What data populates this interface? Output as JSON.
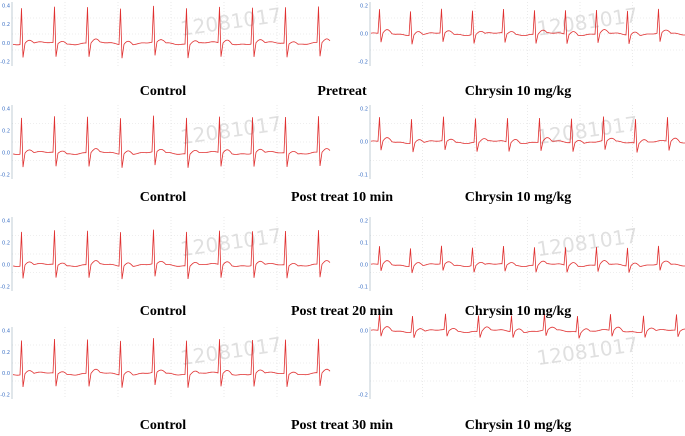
{
  "panels": [
    {
      "side": "left",
      "y_ticks": [
        "0.4",
        "0.2",
        "0.0",
        "-0.2"
      ],
      "watermark": "12081017"
    },
    {
      "side": "right",
      "y_ticks": [
        "0.2",
        "0.0",
        "-0.2"
      ],
      "watermark": "12081017"
    },
    {
      "side": "left",
      "y_ticks": [
        "0.4",
        "0.2",
        "0.0",
        "-0.2"
      ],
      "watermark": "12081017"
    },
    {
      "side": "right",
      "y_ticks": [
        "0.2",
        "0.0",
        "-0.1"
      ],
      "watermark": "12081017"
    },
    {
      "side": "left",
      "y_ticks": [
        "0.4",
        "0.2",
        "0.0",
        "-0.2"
      ],
      "watermark": "12081017"
    },
    {
      "side": "right",
      "y_ticks": [
        "0.2",
        "0.1",
        "0.0",
        "-0.1"
      ],
      "watermark": "12081017"
    },
    {
      "side": "left",
      "y_ticks": [
        "0.4",
        "0.2",
        "0.0",
        "-0.2"
      ],
      "watermark": "12081017"
    },
    {
      "side": "right",
      "y_ticks": [
        "0.0",
        "-0.2"
      ],
      "watermark": "12081017"
    }
  ],
  "rows": [
    {
      "left": "Control",
      "middle": "Pretreat",
      "right": "Chrysin 10 mg/kg"
    },
    {
      "left": "Control",
      "middle": "Post treat 10 min",
      "right": "Chrysin 10 mg/kg"
    },
    {
      "left": "Control",
      "middle": "Post treat 20 min",
      "right": "Chrysin 10 mg/kg"
    },
    {
      "left": "Control",
      "middle": "Post treat 30 min",
      "right": "Chrysin 10 mg/kg"
    }
  ]
}
